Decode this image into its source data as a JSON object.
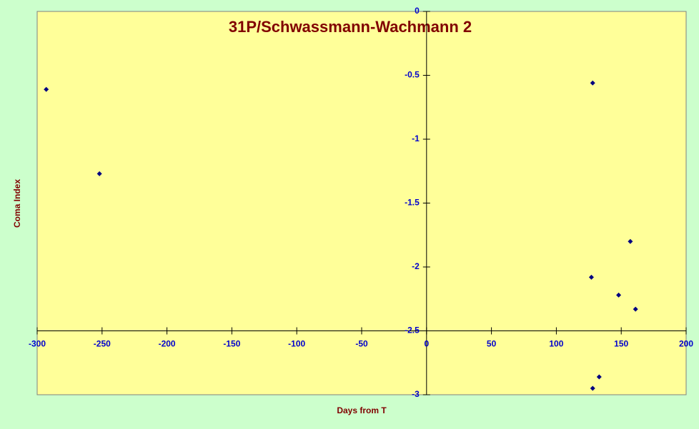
{
  "chart_data": {
    "type": "scatter",
    "title": "31P/Schwassmann-Wachmann 2",
    "x_label": "Days from T",
    "y_label": "Coma Index",
    "series": [
      {
        "color": "#000080",
        "x": [
          -293,
          -252,
          128,
          157,
          127,
          148,
          161,
          133,
          128
        ],
        "values": [
          -0.61,
          -1.27,
          -0.56,
          -1.8,
          -2.08,
          -2.22,
          -2.33,
          -2.86,
          -2.95
        ]
      }
    ],
    "xlim": [
      -300,
      200
    ],
    "xticks": [
      -300,
      -250,
      -200,
      -150,
      -100,
      -50,
      0,
      50,
      100,
      150,
      200
    ],
    "ylim": [
      -3,
      0
    ],
    "yticks": [
      -3,
      -2.5,
      -2,
      -1.5,
      -1,
      -0.5,
      0
    ],
    "x_axis_at": -2.5,
    "y_axis_at": 0
  }
}
